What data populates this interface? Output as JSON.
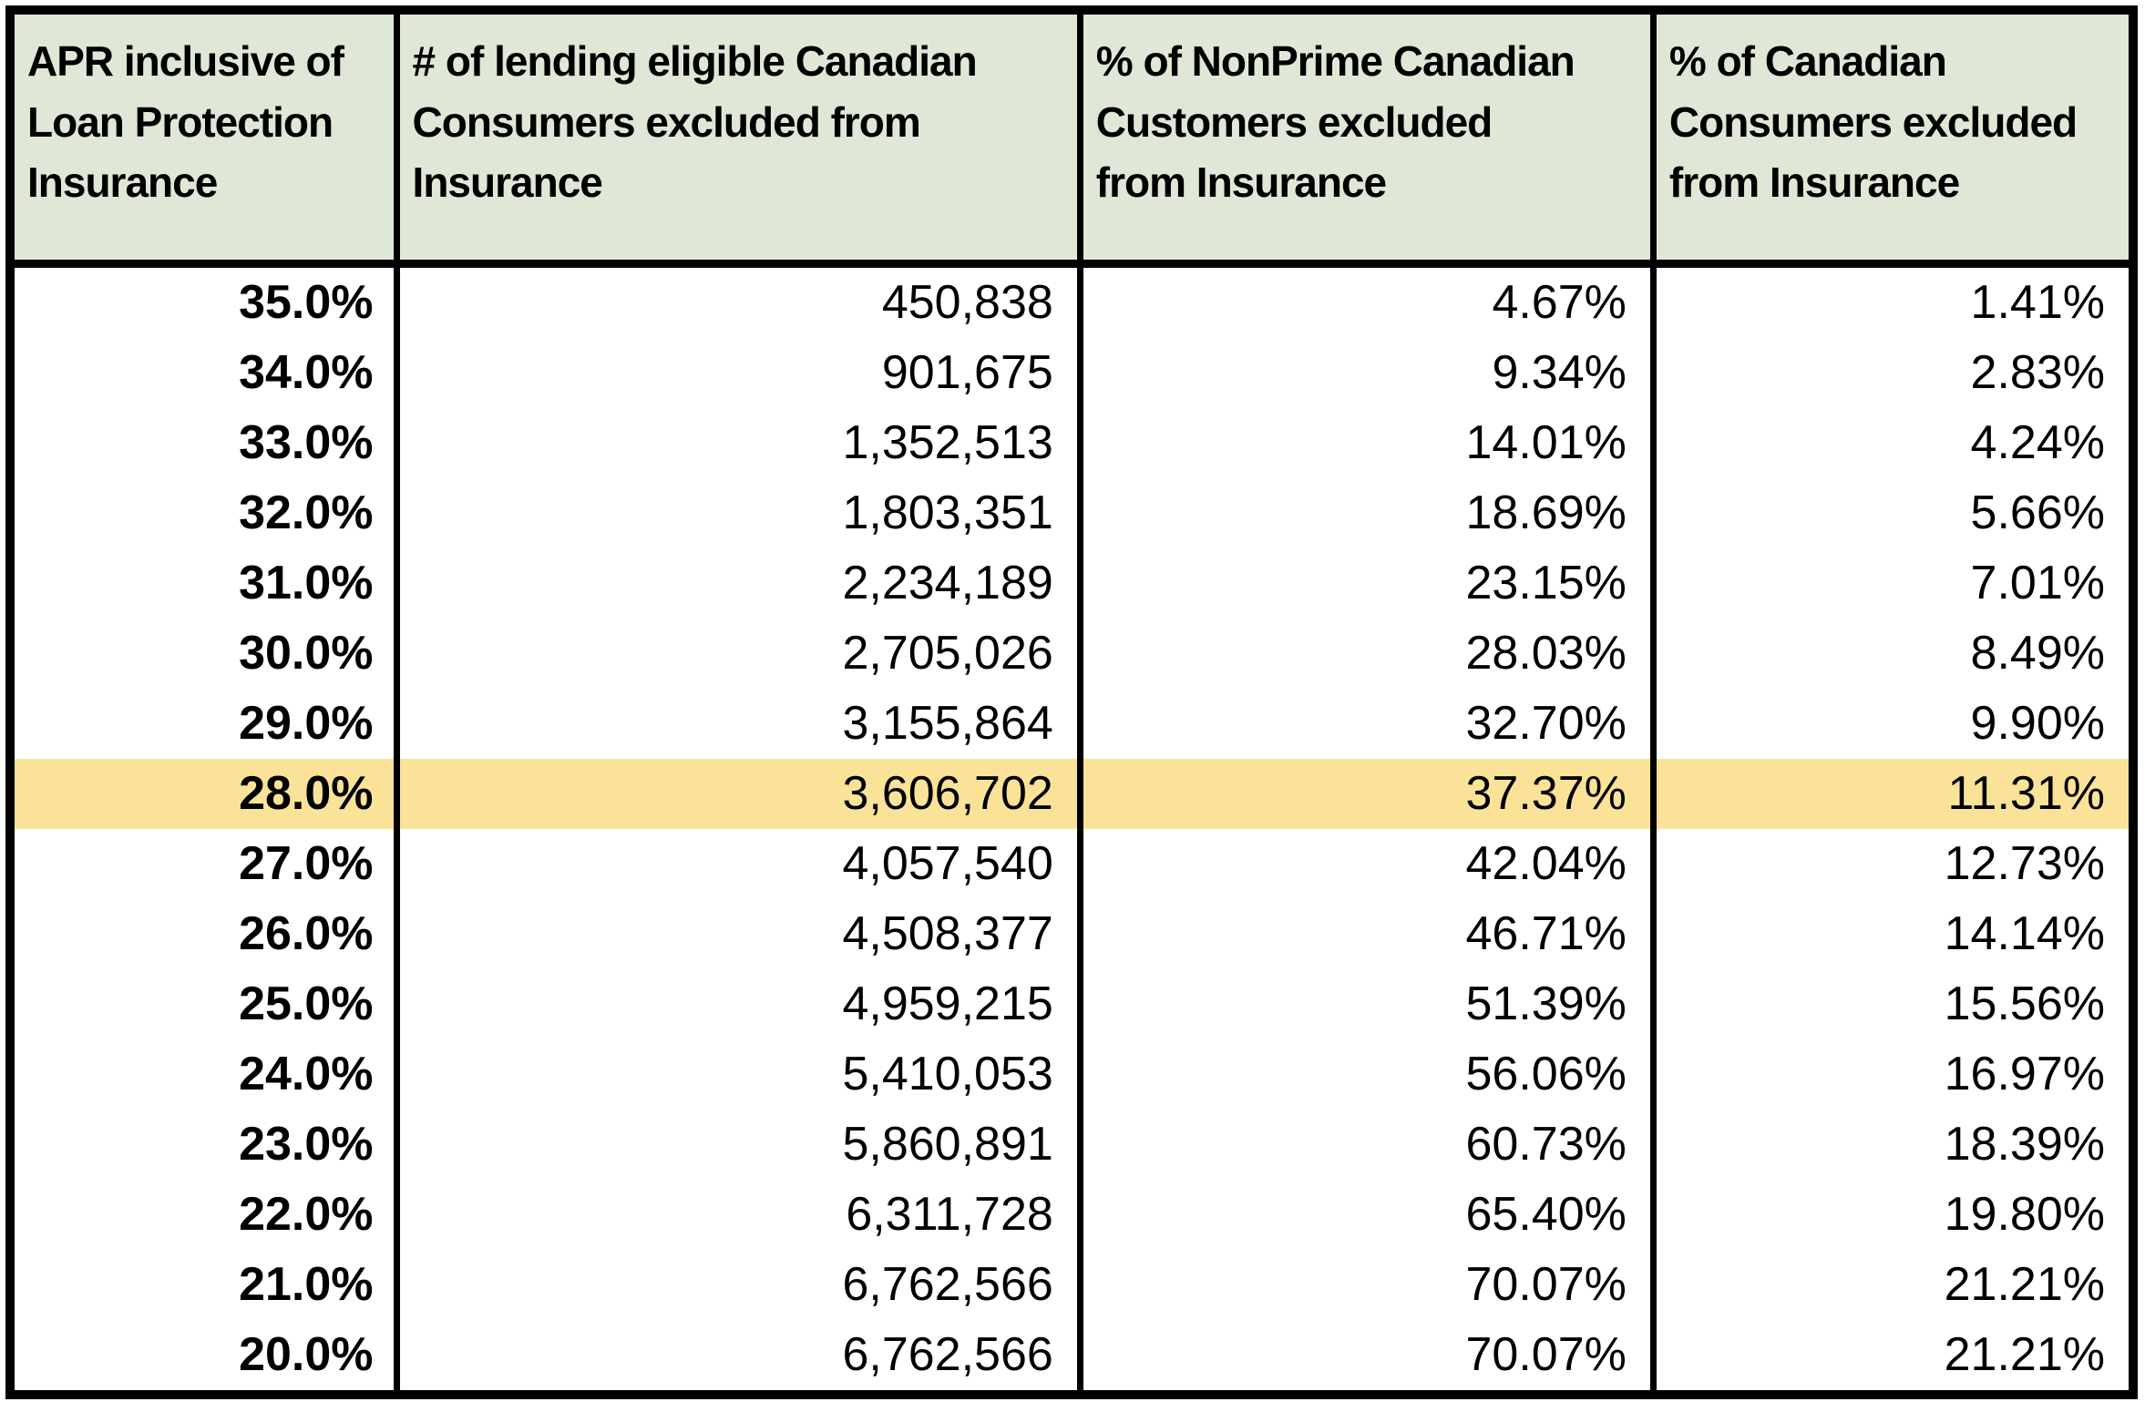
{
  "style": {
    "header_bg": "#dfe8d7",
    "highlight_bg": "#fae398",
    "border_color": "#000000",
    "text_color": "#000000"
  },
  "chart_data": {
    "type": "table",
    "title": "",
    "columns": [
      "APR inclusive of\nLoan Protection\nInsurance",
      "# of lending eligible Canadian\nConsumers excluded from\nInsurance",
      "% of NonPrime Canadian\nCustomers excluded\nfrom Insurance",
      "% of Canadian\nConsumers excluded\nfrom Insurance"
    ],
    "rows": [
      [
        "35.0%",
        "450,838",
        "4.67%",
        "1.41%"
      ],
      [
        "34.0%",
        "901,675",
        "9.34%",
        "2.83%"
      ],
      [
        "33.0%",
        "1,352,513",
        "14.01%",
        "4.24%"
      ],
      [
        "32.0%",
        "1,803,351",
        "18.69%",
        "5.66%"
      ],
      [
        "31.0%",
        "2,234,189",
        "23.15%",
        "7.01%"
      ],
      [
        "30.0%",
        "2,705,026",
        "28.03%",
        "8.49%"
      ],
      [
        "29.0%",
        "3,155,864",
        "32.70%",
        "9.90%"
      ],
      [
        "28.0%",
        "3,606,702",
        "37.37%",
        "11.31%"
      ],
      [
        "27.0%",
        "4,057,540",
        "42.04%",
        "12.73%"
      ],
      [
        "26.0%",
        "4,508,377",
        "46.71%",
        "14.14%"
      ],
      [
        "25.0%",
        "4,959,215",
        "51.39%",
        "15.56%"
      ],
      [
        "24.0%",
        "5,410,053",
        "56.06%",
        "16.97%"
      ],
      [
        "23.0%",
        "5,860,891",
        "60.73%",
        "18.39%"
      ],
      [
        "22.0%",
        "6,311,728",
        "65.40%",
        "19.80%"
      ],
      [
        "21.0%",
        "6,762,566",
        "70.07%",
        "21.21%"
      ],
      [
        "20.0%",
        "6,762,566",
        "70.07%",
        "21.21%"
      ]
    ],
    "highlighted_row_index": 7,
    "highlighted_row_apr": "28.0%",
    "layout": {
      "header_background": "#dfe8d7",
      "highlight_background": "#fae398",
      "grid": "thick black outer border, thick vertical column separators, no horizontal lines between data rows",
      "alignment": "headers left-aligned top, data right-aligned, first column bold"
    }
  }
}
